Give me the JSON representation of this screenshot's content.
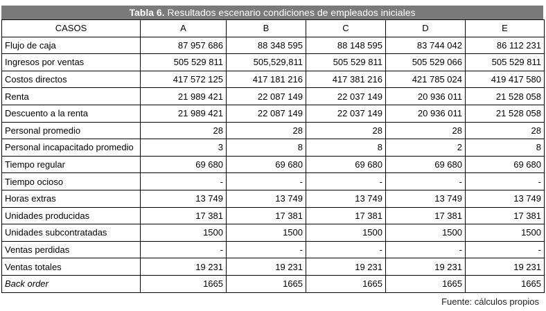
{
  "title": {
    "label": "Tabla 6.",
    "text": "Resultados escenario condiciones de empleados iniciales"
  },
  "table": {
    "header": [
      "CASOS",
      "A",
      "B",
      "C",
      "D",
      "E"
    ],
    "rows": [
      [
        "Flujo de caja",
        "87 957 686",
        "88 348 595",
        "88 148 595",
        "83 744 042",
        "86 112 231"
      ],
      [
        "Ingresos por ventas",
        "505 529 811",
        "505,529,811",
        "505 529 811",
        "505 529 066",
        "505 529 811"
      ],
      [
        "Costos directos",
        "417 572 125",
        "417 181 216",
        "417 381 216",
        "421 785 024",
        "419 417 580"
      ],
      [
        "Renta",
        "21 989 421",
        "22 087 149",
        "22 037 149",
        "20 936 011",
        "21 528 058"
      ],
      [
        "Descuento a la renta",
        "21 989 421",
        "22 087 149",
        "22 037 149",
        "20 936 011",
        "21 528 058"
      ],
      [
        "Personal promedio",
        "28",
        "28",
        "28",
        "28",
        "28"
      ],
      [
        "Personal incapacitado promedio",
        "3",
        "8",
        "8",
        "2",
        "8"
      ],
      [
        "Tiempo regular",
        "69 680",
        "69 680",
        "69 680",
        "69 680",
        "69 680"
      ],
      [
        "Tiempo ocioso",
        "-",
        "-",
        "-",
        "-",
        "-"
      ],
      [
        "Horas extras",
        "13 749",
        "13 749",
        "13 749",
        "13 749",
        "13 749"
      ],
      [
        "Unidades producidas",
        "17 381",
        "17 381",
        "17 381",
        "17 381",
        "17 381"
      ],
      [
        "Unidades subcontratadas",
        "1500",
        "1500",
        "1500",
        "1500",
        "1500"
      ],
      [
        "Ventas perdidas",
        "-",
        "-",
        "-",
        "-",
        "-"
      ],
      [
        "Ventas totales",
        "19 231",
        "19 231",
        "19 231",
        "19 231",
        "19 231"
      ],
      [
        "Back order",
        "1665",
        "1665",
        "1665",
        "1665",
        "1665"
      ]
    ]
  },
  "footer": "Fuente: cálculos propios"
}
